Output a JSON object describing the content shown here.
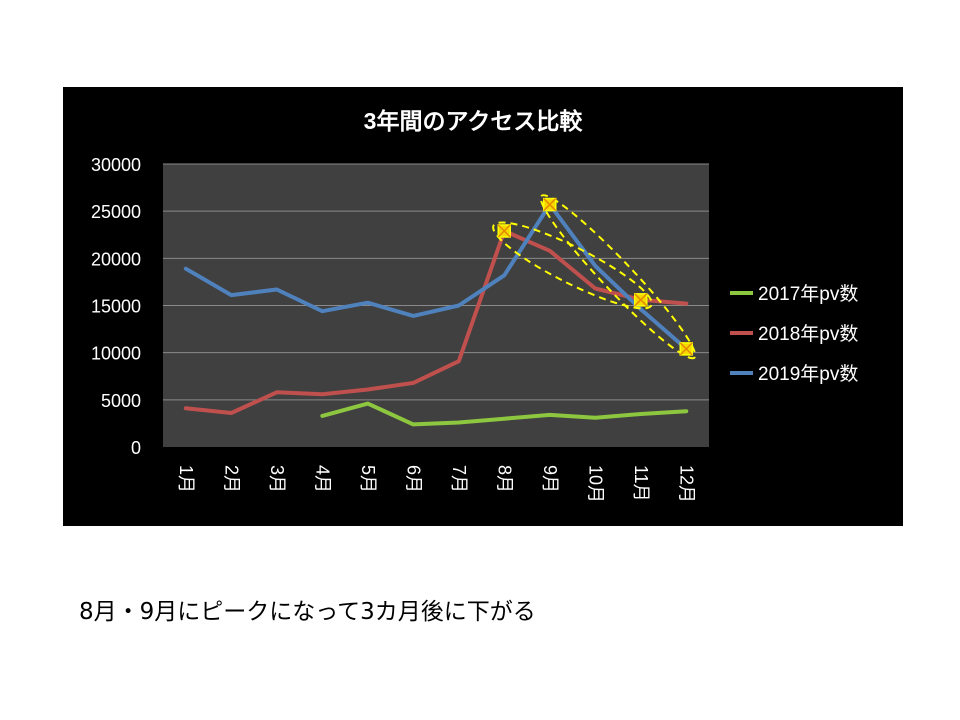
{
  "chart_data": {
    "type": "line",
    "title": "3年間のアクセス比較",
    "categories": [
      "1月",
      "2月",
      "3月",
      "4月",
      "5月",
      "6月",
      "7月",
      "8月",
      "9月",
      "10月",
      "11月",
      "12月"
    ],
    "ylim": [
      0,
      30000
    ],
    "yticks": [
      "30000",
      "25000",
      "20000",
      "15000",
      "10000",
      "5000",
      "0"
    ],
    "grid": true,
    "legend_position": "right",
    "series": [
      {
        "name": "2017年pv数",
        "color": "#8DC63F",
        "values": [
          null,
          null,
          null,
          3300,
          4600,
          2400,
          2600,
          3000,
          3400,
          3100,
          3500,
          3800
        ]
      },
      {
        "name": "2018年pv数",
        "color": "#C0504D",
        "values": [
          4100,
          3600,
          5800,
          5600,
          6100,
          6800,
          9100,
          22900,
          20800,
          16800,
          15600,
          15200
        ]
      },
      {
        "name": "2019年pv数",
        "color": "#4F81BD",
        "values": [
          18900,
          16100,
          16700,
          14400,
          15300,
          13900,
          15000,
          18200,
          25700,
          19200,
          14600,
          10400
        ]
      }
    ],
    "highlight_markers": [
      {
        "month": "8月",
        "value": 22900
      },
      {
        "month": "9月",
        "value": 25700
      },
      {
        "month": "11月",
        "value": 15600
      },
      {
        "month": "12月",
        "value": 10400
      }
    ],
    "colors": {
      "background": "#000000",
      "plot_area": "#404040",
      "gridline": "#8a8a8a",
      "highlight": "#FFFF00",
      "text": "#FFFFFF"
    }
  },
  "caption": "8月・9月にピークになって3カ月後に下がる"
}
